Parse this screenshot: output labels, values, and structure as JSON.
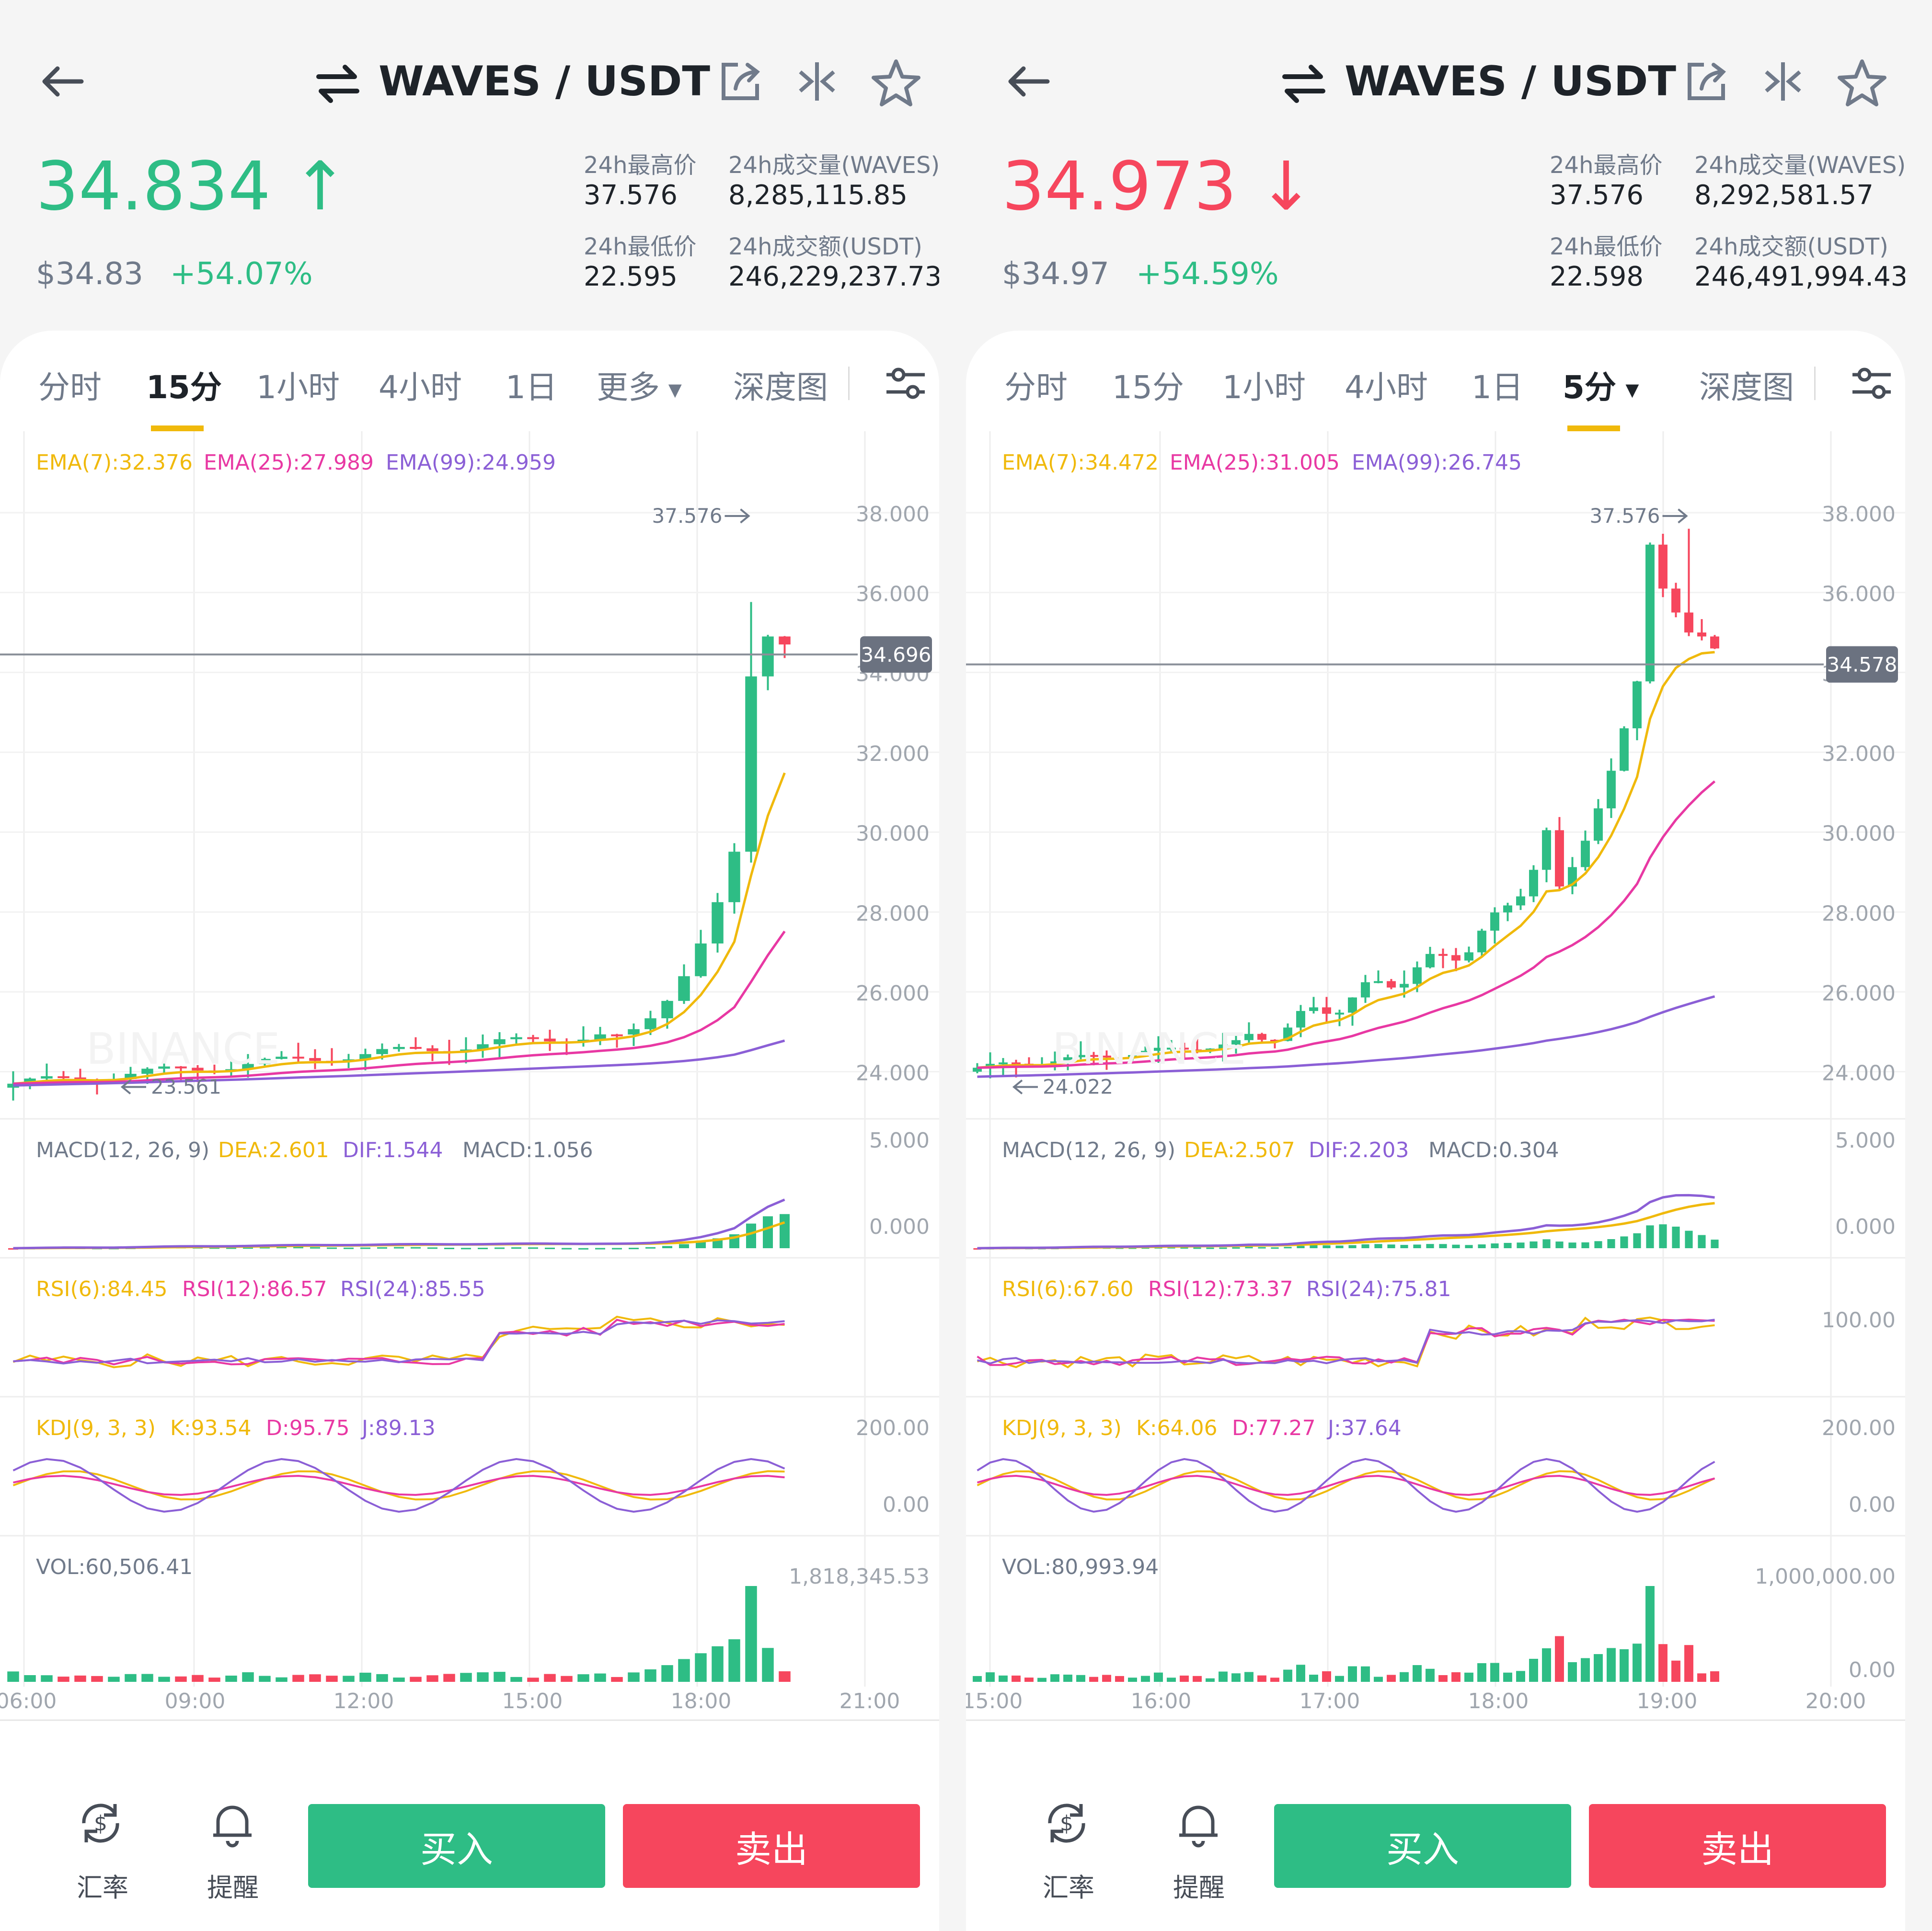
{
  "colors": {
    "green": "#2ebd85",
    "red": "#f6465d",
    "yellow": "#f0b90b",
    "pink": "#e838a3",
    "purple": "#8b5fd6",
    "grey": "#707a8a"
  },
  "panels": [
    {
      "pair": "WAVES / USDT",
      "price": "34.834",
      "price_arrow": "↑",
      "price_color": "#2ebd85",
      "fiat_price": "$34.83",
      "change_pct": "+54.07%",
      "stats": {
        "high_label": "24h最高价",
        "high": "37.576",
        "vol_base_label": "24h成交量(WAVES)",
        "vol_base": "8,285,115.85",
        "low_label": "24h最低价",
        "low": "22.595",
        "vol_quote_label": "24h成交额(USDT)",
        "vol_quote": "246,229,237.73"
      },
      "tabs": [
        "分时",
        "15分",
        "1小时",
        "4小时",
        "1日",
        "更多",
        "深度图"
      ],
      "active_tab": 1,
      "ema_legend": {
        "ema7": "EMA(7):32.376",
        "ema25": "EMA(25):27.989",
        "ema99": "EMA(99):24.959"
      },
      "price_axis": [
        "38.000",
        "36.000",
        "34.000",
        "32.000",
        "30.000",
        "28.000",
        "26.000",
        "24.000"
      ],
      "high_marker": "37.576",
      "low_marker": "23.561",
      "last_price_tag": "34.696",
      "macd_legend": {
        "title": "MACD(12, 26, 9)",
        "dea": "DEA:2.601",
        "dif": "DIF:1.544",
        "macd": "MACD:1.056"
      },
      "macd_axis": [
        "5.000",
        "0.000"
      ],
      "rsi_legend": {
        "r6": "RSI(6):84.45",
        "r12": "RSI(12):86.57",
        "r24": "RSI(24):85.55"
      },
      "rsi_axis": [
        ""
      ],
      "kdj_legend": {
        "title": "KDJ(9, 3, 3)",
        "k": "K:93.54",
        "d": "D:95.75",
        "j": "J:89.13"
      },
      "kdj_axis": [
        "200.00",
        "0.00"
      ],
      "vol_legend": "VOL:60,506.41",
      "vol_axis": [
        "1,818,345.53",
        ""
      ],
      "time_axis": [
        "06:00",
        "09:00",
        "12:00",
        "15:00",
        "18:00",
        "21:00"
      ],
      "buttons": {
        "rate": "汇率",
        "alert": "提醒",
        "buy": "买入",
        "sell": "卖出"
      }
    },
    {
      "pair": "WAVES / USDT",
      "price": "34.973",
      "price_arrow": "↓",
      "price_color": "#f6465d",
      "fiat_price": "$34.97",
      "change_pct": "+54.59%",
      "stats": {
        "high_label": "24h最高价",
        "high": "37.576",
        "vol_base_label": "24h成交量(WAVES)",
        "vol_base": "8,292,581.57",
        "low_label": "24h最低价",
        "low": "22.598",
        "vol_quote_label": "24h成交额(USDT)",
        "vol_quote": "246,491,994.43"
      },
      "tabs": [
        "分时",
        "15分",
        "1小时",
        "4小时",
        "1日",
        "5分",
        "深度图"
      ],
      "active_tab": 5,
      "ema_legend": {
        "ema7": "EMA(7):34.472",
        "ema25": "EMA(25):31.005",
        "ema99": "EMA(99):26.745"
      },
      "price_axis": [
        "38.000",
        "36.000",
        "34.000",
        "32.000",
        "30.000",
        "28.000",
        "26.000",
        "24.000"
      ],
      "high_marker": "37.576",
      "low_marker": "24.022",
      "last_price_tag": "34.578",
      "macd_legend": {
        "title": "MACD(12, 26, 9)",
        "dea": "DEA:2.507",
        "dif": "DIF:2.203",
        "macd": "MACD:0.304"
      },
      "macd_axis": [
        "5.000",
        "0.000"
      ],
      "rsi_legend": {
        "r6": "RSI(6):67.60",
        "r12": "RSI(12):73.37",
        "r24": "RSI(24):75.81"
      },
      "rsi_axis": [
        "100.00"
      ],
      "kdj_legend": {
        "title": "KDJ(9, 3, 3)",
        "k": "K:64.06",
        "d": "D:77.27",
        "j": "J:37.64"
      },
      "kdj_axis": [
        "200.00",
        "0.00"
      ],
      "vol_legend": "VOL:80,993.94",
      "vol_axis": [
        "1,000,000.00",
        "0.00"
      ],
      "time_axis": [
        "15:00",
        "16:00",
        "17:00",
        "18:00",
        "19:00",
        "20:00"
      ],
      "buttons": {
        "rate": "汇率",
        "alert": "提醒",
        "buy": "买入",
        "sell": "卖出"
      }
    }
  ]
}
